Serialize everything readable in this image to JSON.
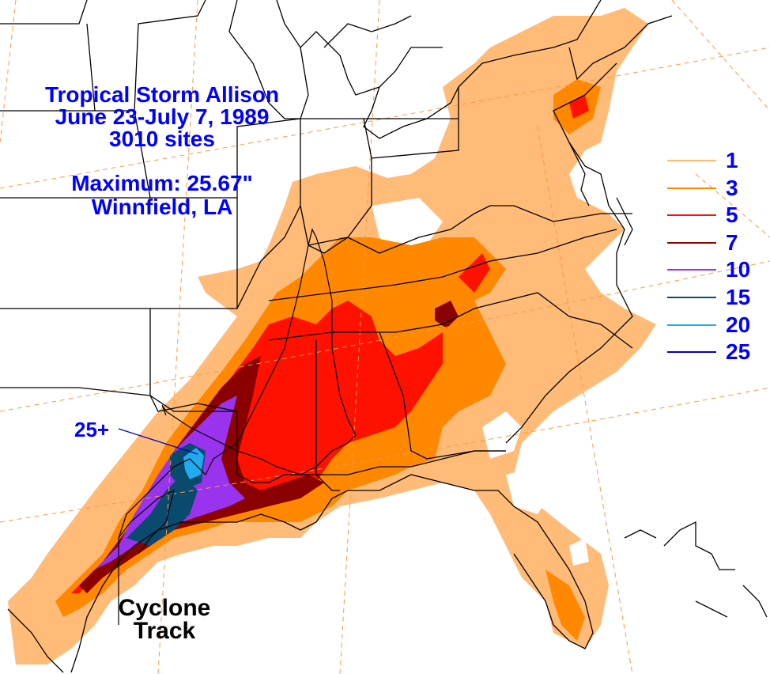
{
  "title": {
    "line1": "Tropical Storm Allison",
    "line2": "June 23-July 7, 1989",
    "line3": "3010 sites"
  },
  "maximum": {
    "line1": "Maximum:  25.67\"",
    "line2": "Winnfield, LA"
  },
  "max_marker_label": "25+",
  "track_label": {
    "line1": "Cyclone",
    "line2": "Track"
  },
  "legend": [
    {
      "value": "1",
      "color": "#ffbb77"
    },
    {
      "value": "3",
      "color": "#ff8800"
    },
    {
      "value": "5",
      "color": "#ff1100"
    },
    {
      "value": "7",
      "color": "#8b0000"
    },
    {
      "value": "10",
      "color": "#9933ee"
    },
    {
      "value": "15",
      "color": "#0b4a6f"
    },
    {
      "value": "20",
      "color": "#22aaee"
    },
    {
      "value": "25",
      "color": "#0000cc"
    }
  ],
  "colors": {
    "background": "#ffffff",
    "text": "#0000ff",
    "borders": "#000000",
    "gridlines": "#ff9944"
  }
}
